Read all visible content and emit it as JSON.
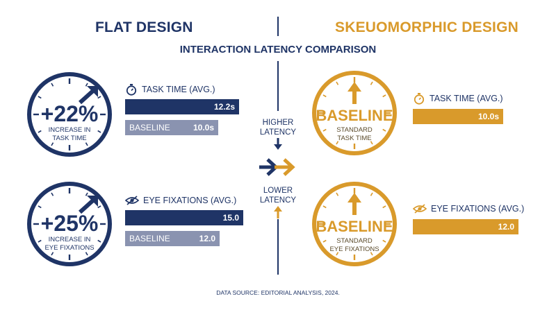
{
  "header": {
    "left_title": "FLAT DESIGN",
    "right_title": "SKEUOMORPHIC DESIGN",
    "subtitle": "INTERACTION LATENCY COMPARISON"
  },
  "flat": {
    "task": {
      "gauge_value": "+22%",
      "gauge_caption_1": "INCREASE IN",
      "gauge_caption_2": "TASK TIME",
      "metric_label": "TASK TIME (AVG.)",
      "metric_icon": "stopwatch-icon",
      "bar_value_label": "12.2s",
      "baseline_label": "BASELINE",
      "baseline_value_label": "10.0s"
    },
    "fix": {
      "gauge_value": "+25%",
      "gauge_caption_1": "INCREASE IN",
      "gauge_caption_2": "EYE FIXATIONS",
      "metric_label": "EYE FIXATIONS (AVG.)",
      "metric_icon": "eye-slash-icon",
      "bar_value_label": "15.0",
      "baseline_label": "BASELINE",
      "baseline_value_label": "12.0"
    }
  },
  "skeuo": {
    "task": {
      "gauge_value": "BASELINE",
      "gauge_caption_1": "STANDARD",
      "gauge_caption_2": "TASK TIME",
      "metric_label": "TASK TIME (AVG.)",
      "metric_icon": "stopwatch-icon",
      "bar_value_label": "10.0s"
    },
    "fix": {
      "gauge_value": "BASELINE",
      "gauge_caption_1": "STANDARD",
      "gauge_caption_2": "EYE FIXATIONS",
      "metric_label": "EYE FIXATIONS (AVG.)",
      "metric_icon": "eye-slash-icon",
      "bar_value_label": "12.0"
    }
  },
  "center": {
    "higher_1": "HIGHER",
    "higher_2": "LATENCY",
    "lower_1": "LOWER",
    "lower_2": "LATENCY"
  },
  "footer": {
    "source": "DATA SOURCE: EDITORIAL ANALYSIS, 2024."
  },
  "colors": {
    "flat": "#1f3466",
    "skeuo": "#d99a2b",
    "baseline_bar": "#8a93b0"
  },
  "chart_data": [
    {
      "type": "bar",
      "orientation": "horizontal",
      "title": "TASK TIME (AVG.)",
      "categories": [
        "FLAT DESIGN",
        "BASELINE",
        "SKEUOMORPHIC DESIGN"
      ],
      "values": [
        12.2,
        10.0,
        10.0
      ],
      "unit": "s"
    },
    {
      "type": "bar",
      "orientation": "horizontal",
      "title": "EYE FIXATIONS (AVG.)",
      "categories": [
        "FLAT DESIGN",
        "BASELINE",
        "SKEUOMORPHIC DESIGN"
      ],
      "values": [
        15.0,
        12.0,
        12.0
      ]
    }
  ]
}
